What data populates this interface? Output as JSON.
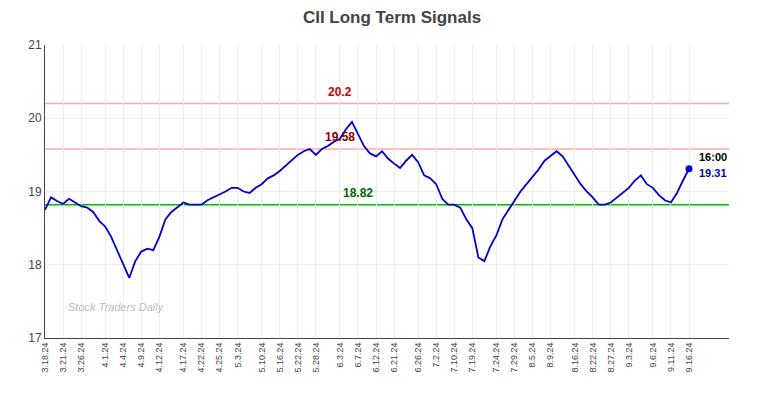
{
  "chart_data": {
    "type": "line",
    "title": "CII Long Term Signals",
    "categories": [
      "3.18.24",
      null,
      null,
      "3.21.24",
      null,
      null,
      "3.26.24",
      null,
      null,
      null,
      "4.1.24",
      null,
      null,
      "4.4.24",
      null,
      null,
      "4.9.24",
      null,
      null,
      "4.12.24",
      null,
      null,
      null,
      "4.17.24",
      null,
      null,
      "4.22.24",
      null,
      null,
      "4.25.24",
      null,
      null,
      "5.3.24",
      null,
      null,
      null,
      "5.10.24",
      null,
      null,
      "5.16.24",
      null,
      null,
      "5.22.24",
      null,
      null,
      "5.28.24",
      null,
      null,
      null,
      "6.3.24",
      null,
      null,
      "6.7.24",
      null,
      null,
      "6.12.24",
      null,
      null,
      "6.21.24",
      null,
      null,
      null,
      "6.26.24",
      null,
      null,
      "7.2.24",
      null,
      null,
      "7.10.24",
      null,
      null,
      "7.19.24",
      null,
      null,
      null,
      "7.24.24",
      null,
      null,
      "7.29.24",
      null,
      null,
      "8.5.24",
      null,
      null,
      "8.9.24",
      null,
      null,
      null,
      "8.16.24",
      null,
      null,
      "8.22.24",
      null,
      null,
      "8.27.24",
      null,
      null,
      "9.3.24",
      null,
      null,
      null,
      "9.6.24",
      null,
      null,
      "9.11.24",
      null,
      null,
      "9.16.24"
    ],
    "values": [
      18.75,
      18.92,
      18.87,
      18.83,
      18.9,
      18.85,
      18.8,
      18.78,
      18.72,
      18.6,
      18.52,
      18.38,
      18.2,
      18.02,
      17.82,
      18.05,
      18.18,
      18.22,
      18.2,
      18.38,
      18.62,
      18.72,
      18.78,
      18.85,
      18.82,
      18.82,
      18.82,
      18.88,
      18.92,
      18.95,
      19.0,
      19.05,
      19.05,
      19.0,
      18.98,
      19.05,
      19.1,
      19.18,
      19.22,
      19.28,
      19.35,
      19.42,
      19.5,
      19.55,
      19.58,
      19.5,
      19.58,
      19.62,
      19.68,
      19.72,
      19.85,
      19.95,
      19.78,
      19.62,
      19.52,
      19.48,
      19.55,
      19.45,
      19.38,
      19.32,
      19.42,
      19.5,
      19.4,
      19.22,
      19.18,
      19.1,
      18.9,
      18.82,
      18.82,
      18.78,
      18.62,
      18.5,
      18.1,
      18.05,
      18.25,
      18.4,
      18.62,
      18.75,
      18.88,
      19.0,
      19.1,
      19.2,
      19.3,
      19.42,
      19.48,
      19.55,
      19.48,
      19.35,
      19.22,
      19.1,
      19.0,
      18.92,
      18.82,
      18.82,
      18.85,
      18.92,
      18.98,
      19.05,
      19.15,
      19.22,
      19.1,
      19.05,
      18.95,
      18.88,
      18.85,
      18.98,
      19.15,
      19.31
    ],
    "color": "#0000cc",
    "ylim": [
      17,
      21
    ],
    "yticks": [
      17,
      18,
      19,
      20,
      21
    ],
    "grid": true,
    "levels": [
      {
        "value": 20.2,
        "color": "#ffaaaa",
        "label": "20.2",
        "label_color": "#cc0000",
        "at": "6.3.24"
      },
      {
        "value": 19.58,
        "color": "#ffaaaa",
        "label": "19.58",
        "label_color": "#880000",
        "at": "6.3.24"
      },
      {
        "value": 18.82,
        "color": "#00bb00",
        "label": "18.82",
        "label_color": "#006600",
        "at": "6.7.24"
      }
    ],
    "end_labels": [
      {
        "text": "16:00",
        "color": "#000000"
      },
      {
        "text": "19.31",
        "color": "#0000cc"
      }
    ],
    "watermark": "Stock Traders Daily"
  }
}
